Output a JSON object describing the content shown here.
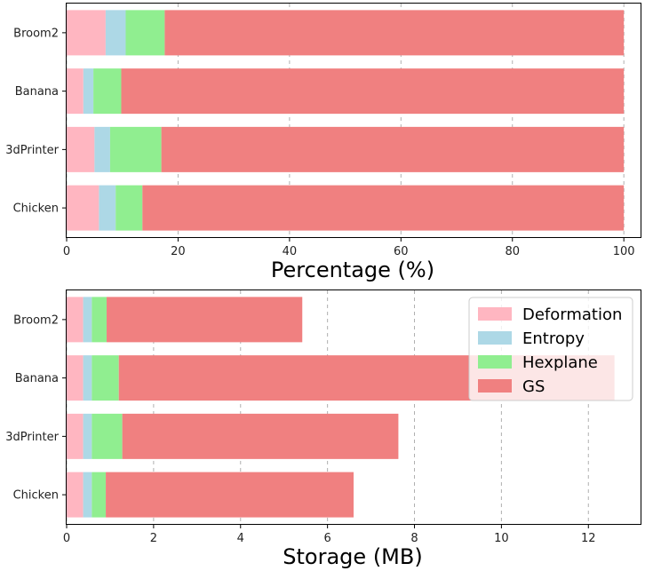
{
  "colors": {
    "Deformation": "#FFB6C1",
    "Entropy": "#ADD8E6",
    "Hexplane": "#90EE90",
    "GS": "#F08080"
  },
  "chart_data": [
    {
      "id": "percentage",
      "type": "bar",
      "orientation": "horizontal",
      "stacked": true,
      "title": "",
      "xlabel": "Percentage (%)",
      "ylabel": "",
      "categories": [
        "Chicken",
        "3dPrinter",
        "Banana",
        "Broom2"
      ],
      "series": [
        {
          "name": "Deformation",
          "values": [
            5.8,
            5.0,
            3.0,
            7.0
          ]
        },
        {
          "name": "Entropy",
          "values": [
            3.0,
            2.8,
            1.8,
            3.6
          ]
        },
        {
          "name": "Hexplane",
          "values": [
            4.8,
            9.2,
            5.0,
            7.0
          ]
        },
        {
          "name": "GS",
          "values": [
            86.4,
            83.0,
            90.2,
            82.4
          ]
        }
      ],
      "xlim": [
        0,
        103
      ],
      "xticks": [
        0,
        20,
        40,
        60,
        80,
        100
      ],
      "grid": "x"
    },
    {
      "id": "storage",
      "type": "bar",
      "orientation": "horizontal",
      "stacked": true,
      "title": "",
      "xlabel": "Storage (MB)",
      "ylabel": "",
      "categories": [
        "Chicken",
        "3dPrinter",
        "Banana",
        "Broom2"
      ],
      "series": [
        {
          "name": "Deformation",
          "values": [
            0.38,
            0.38,
            0.38,
            0.38
          ]
        },
        {
          "name": "Entropy",
          "values": [
            0.2,
            0.2,
            0.2,
            0.2
          ]
        },
        {
          "name": "Hexplane",
          "values": [
            0.32,
            0.7,
            0.62,
            0.34
          ]
        },
        {
          "name": "GS",
          "values": [
            5.7,
            6.35,
            11.4,
            4.5
          ]
        }
      ],
      "xlim": [
        0,
        13.2
      ],
      "xticks": [
        0,
        2,
        4,
        6,
        8,
        10,
        12
      ],
      "grid": "x",
      "legend": {
        "position": "top-right",
        "entries": [
          "Deformation",
          "Entropy",
          "Hexplane",
          "GS"
        ]
      }
    }
  ]
}
